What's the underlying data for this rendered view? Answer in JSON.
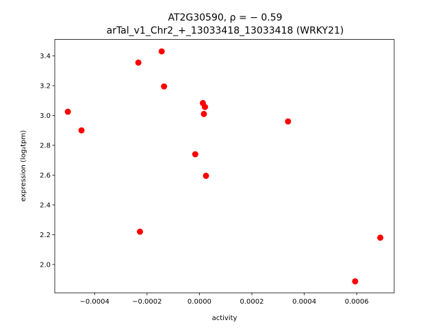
{
  "chart_data": {
    "type": "scatter",
    "title_lines": [
      "AT2G30590, ρ = − 0.59",
      "arTal_v1_Chr2_+_13033418_13033418 (WRKY21)"
    ],
    "xlabel": "activity",
    "ylabel": "expression (log₂tpm)",
    "xlim": [
      -0.000552,
      0.000743
    ],
    "ylim": [
      1.81,
      3.51
    ],
    "x_ticks": [
      -0.0004,
      -0.0002,
      0.0,
      0.0002,
      0.0004,
      0.0006
    ],
    "x_tick_labels": [
      "−0.0004",
      "−0.0002",
      "0.0000",
      "0.0002",
      "0.0004",
      "0.0006"
    ],
    "y_ticks": [
      2.0,
      2.2,
      2.4,
      2.6,
      2.8,
      3.0,
      3.2,
      3.4
    ],
    "y_tick_labels": [
      "2.0",
      "2.2",
      "2.4",
      "2.6",
      "2.8",
      "3.0",
      "3.2",
      "3.4"
    ],
    "grid": false,
    "marker_color": "#ff0000",
    "points": [
      {
        "x": -0.000502,
        "y": 3.025
      },
      {
        "x": -0.00045,
        "y": 2.9
      },
      {
        "x": -0.000233,
        "y": 3.355
      },
      {
        "x": -0.000227,
        "y": 2.22
      },
      {
        "x": -0.000144,
        "y": 3.43
      },
      {
        "x": -0.000135,
        "y": 3.195
      },
      {
        "x": -1.6e-05,
        "y": 2.74
      },
      {
        "x": 1.3e-05,
        "y": 3.083
      },
      {
        "x": 1.7e-05,
        "y": 3.01
      },
      {
        "x": 2.1e-05,
        "y": 3.057
      },
      {
        "x": 2.5e-05,
        "y": 2.595
      },
      {
        "x": 0.000338,
        "y": 2.96
      },
      {
        "x": 0.000594,
        "y": 1.887
      },
      {
        "x": 0.00069,
        "y": 2.18
      }
    ]
  }
}
